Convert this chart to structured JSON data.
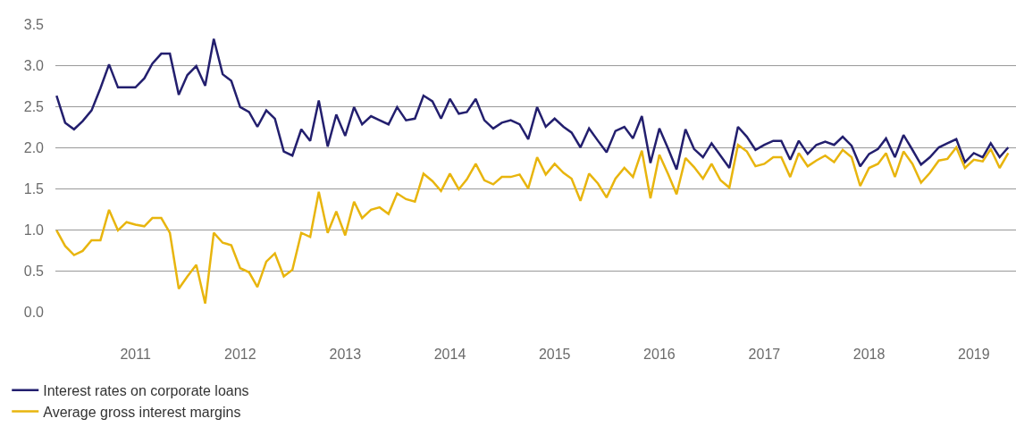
{
  "chart_data": {
    "type": "line",
    "x": [
      "2010-04",
      "2010-05",
      "2010-06",
      "2010-07",
      "2010-08",
      "2010-09",
      "2010-10",
      "2010-11",
      "2010-12",
      "2011-01",
      "2011-02",
      "2011-03",
      "2011-04",
      "2011-05",
      "2011-06",
      "2011-07",
      "2011-08",
      "2011-09",
      "2011-10",
      "2011-11",
      "2011-12",
      "2012-01",
      "2012-02",
      "2012-03",
      "2012-04",
      "2012-05",
      "2012-06",
      "2012-07",
      "2012-08",
      "2012-09",
      "2012-10",
      "2012-11",
      "2012-12",
      "2013-01",
      "2013-02",
      "2013-03",
      "2013-04",
      "2013-05",
      "2013-06",
      "2013-07",
      "2013-08",
      "2013-09",
      "2013-10",
      "2013-11",
      "2013-12",
      "2014-01",
      "2014-02",
      "2014-03",
      "2014-04",
      "2014-05",
      "2014-06",
      "2014-07",
      "2014-08",
      "2014-09",
      "2014-10",
      "2014-11",
      "2014-12",
      "2015-01",
      "2015-02",
      "2015-03",
      "2015-04",
      "2015-05",
      "2015-06",
      "2015-07",
      "2015-08",
      "2015-09",
      "2015-10",
      "2015-11",
      "2015-12",
      "2016-01",
      "2016-02",
      "2016-03",
      "2016-04",
      "2016-05",
      "2016-06",
      "2016-07",
      "2016-08",
      "2016-09",
      "2016-10",
      "2016-11",
      "2016-12",
      "2017-01",
      "2017-02",
      "2017-03",
      "2017-04",
      "2017-05",
      "2017-06",
      "2017-07",
      "2017-08",
      "2017-09",
      "2017-10",
      "2017-11",
      "2017-12",
      "2018-01",
      "2018-02",
      "2018-03",
      "2018-04",
      "2018-05",
      "2018-06",
      "2018-07",
      "2018-08",
      "2018-09",
      "2018-10",
      "2018-11",
      "2018-12",
      "2019-01",
      "2019-02",
      "2019-03",
      "2019-04",
      "2019-05"
    ],
    "series": [
      {
        "name": "Interest rates on corporate loans",
        "color": "#231f6e",
        "values": [
          2.63,
          2.3,
          2.22,
          2.32,
          2.45,
          2.72,
          3.01,
          2.73,
          2.73,
          2.73,
          2.84,
          3.02,
          3.14,
          3.14,
          2.64,
          2.88,
          2.99,
          2.75,
          3.32,
          2.89,
          2.81,
          2.49,
          2.43,
          2.25,
          2.45,
          2.35,
          1.95,
          1.9,
          2.22,
          2.08,
          2.57,
          2.01,
          2.4,
          2.14,
          2.49,
          2.28,
          2.38,
          2.33,
          2.28,
          2.49,
          2.33,
          2.35,
          2.63,
          2.56,
          2.35,
          2.59,
          2.41,
          2.43,
          2.59,
          2.33,
          2.23,
          2.3,
          2.33,
          2.28,
          2.1,
          2.49,
          2.25,
          2.35,
          2.25,
          2.18,
          2.0,
          2.23,
          2.08,
          1.94,
          2.2,
          2.25,
          2.11,
          2.38,
          1.81,
          2.23,
          1.98,
          1.73,
          2.22,
          1.98,
          1.88,
          2.05,
          1.9,
          1.75,
          2.25,
          2.13,
          1.97,
          2.03,
          2.08,
          2.08,
          1.85,
          2.08,
          1.92,
          2.03,
          2.07,
          2.03,
          2.13,
          2.02,
          1.77,
          1.92,
          1.98,
          2.11,
          1.88,
          2.15,
          1.97,
          1.79,
          1.88,
          2.0,
          2.05,
          2.1,
          1.82,
          1.93,
          1.88,
          2.05,
          1.88,
          2.0
        ]
      },
      {
        "name": "Average gross interest margins",
        "color": "#e8b50e",
        "values": [
          0.99,
          0.8,
          0.69,
          0.74,
          0.87,
          0.87,
          1.24,
          0.99,
          1.09,
          1.06,
          1.04,
          1.14,
          1.14,
          0.96,
          0.28,
          0.43,
          0.57,
          0.1,
          0.96,
          0.84,
          0.81,
          0.53,
          0.48,
          0.3,
          0.61,
          0.71,
          0.43,
          0.51,
          0.96,
          0.91,
          1.46,
          0.96,
          1.22,
          0.93,
          1.34,
          1.14,
          1.24,
          1.27,
          1.19,
          1.44,
          1.37,
          1.34,
          1.68,
          1.59,
          1.47,
          1.68,
          1.49,
          1.61,
          1.8,
          1.6,
          1.55,
          1.64,
          1.64,
          1.67,
          1.5,
          1.88,
          1.67,
          1.8,
          1.69,
          1.62,
          1.35,
          1.68,
          1.56,
          1.39,
          1.62,
          1.75,
          1.64,
          1.96,
          1.38,
          1.91,
          1.67,
          1.43,
          1.87,
          1.76,
          1.62,
          1.8,
          1.6,
          1.51,
          2.03,
          1.95,
          1.77,
          1.8,
          1.88,
          1.88,
          1.64,
          1.93,
          1.77,
          1.84,
          1.9,
          1.82,
          1.97,
          1.88,
          1.53,
          1.75,
          1.8,
          1.93,
          1.64,
          1.95,
          1.8,
          1.57,
          1.69,
          1.84,
          1.86,
          2.0,
          1.75,
          1.85,
          1.83,
          1.98,
          1.75,
          1.93
        ]
      }
    ],
    "xlim": [
      "2010-03-28",
      "2019-05-28"
    ],
    "xticks": [
      {
        "value": "2011-01",
        "label": "2011"
      },
      {
        "value": "2012-01",
        "label": "2012"
      },
      {
        "value": "2013-01",
        "label": "2013"
      },
      {
        "value": "2014-01",
        "label": "2014"
      },
      {
        "value": "2015-01",
        "label": "2015"
      },
      {
        "value": "2016-01",
        "label": "2016"
      },
      {
        "value": "2017-01",
        "label": "2017"
      },
      {
        "value": "2018-01",
        "label": "2018"
      },
      {
        "value": "2019-01",
        "label": "2019"
      }
    ],
    "ylim": [
      0,
      3.5
    ],
    "yticks": [
      {
        "value": 0,
        "label": "0.0"
      },
      {
        "value": 0.5,
        "label": "0.5"
      },
      {
        "value": 1,
        "label": "1.0"
      },
      {
        "value": 1.5,
        "label": "1.5"
      },
      {
        "value": 2,
        "label": "2.0"
      },
      {
        "value": 2.5,
        "label": "2.5"
      },
      {
        "value": 3,
        "label": "3.0"
      },
      {
        "value": 3.5,
        "label": "3.5"
      }
    ],
    "grid": "y",
    "legend": "bottom left",
    "marker": "none",
    "line_style": "solid"
  }
}
